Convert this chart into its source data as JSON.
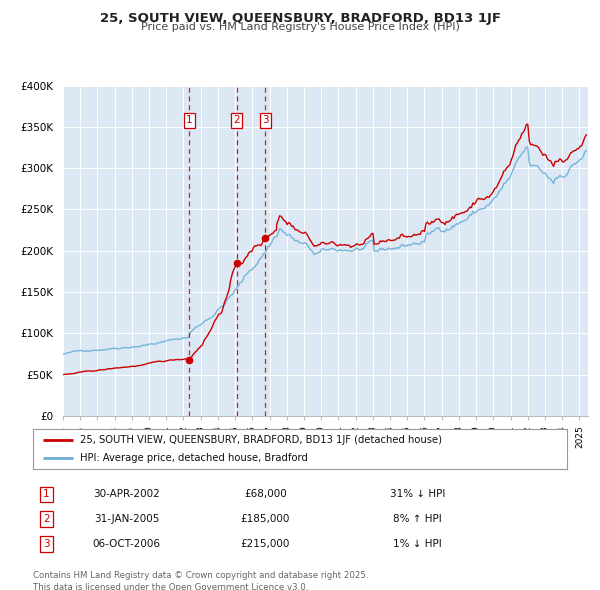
{
  "title": "25, SOUTH VIEW, QUEENSBURY, BRADFORD, BD13 1JF",
  "subtitle": "Price paid vs. HM Land Registry's House Price Index (HPI)",
  "bg_color": "#dce9f5",
  "hpi_color": "#6aaed6",
  "price_color": "#cc0000",
  "dashed_line_color": "#cc0000",
  "sale_marker_color": "#cc0000",
  "legend_line1": "25, SOUTH VIEW, QUEENSBURY, BRADFORD, BD13 1JF (detached house)",
  "legend_line2": "HPI: Average price, detached house, Bradford",
  "transactions": [
    {
      "num": 1,
      "date_str": "30-APR-2002",
      "year": 2002.33,
      "price": 68000,
      "pct": "31%",
      "dir": "↓",
      "label": "1"
    },
    {
      "num": 2,
      "date_str": "31-JAN-2005",
      "year": 2005.08,
      "price": 185000,
      "pct": "8%",
      "dir": "↑",
      "label": "2"
    },
    {
      "num": 3,
      "date_str": "06-OCT-2006",
      "year": 2006.76,
      "price": 215000,
      "pct": "1%",
      "dir": "↓",
      "label": "3"
    }
  ],
  "footer": "Contains HM Land Registry data © Crown copyright and database right 2025.\nThis data is licensed under the Open Government Licence v3.0.",
  "xmin": 1995.0,
  "xmax": 2025.5,
  "ylim": [
    0,
    400000
  ],
  "yticks": [
    0,
    50000,
    100000,
    150000,
    200000,
    250000,
    300000,
    350000,
    400000
  ],
  "ytick_labels": [
    "£0",
    "£50K",
    "£100K",
    "£150K",
    "£200K",
    "£250K",
    "£300K",
    "£350K",
    "£400K"
  ]
}
